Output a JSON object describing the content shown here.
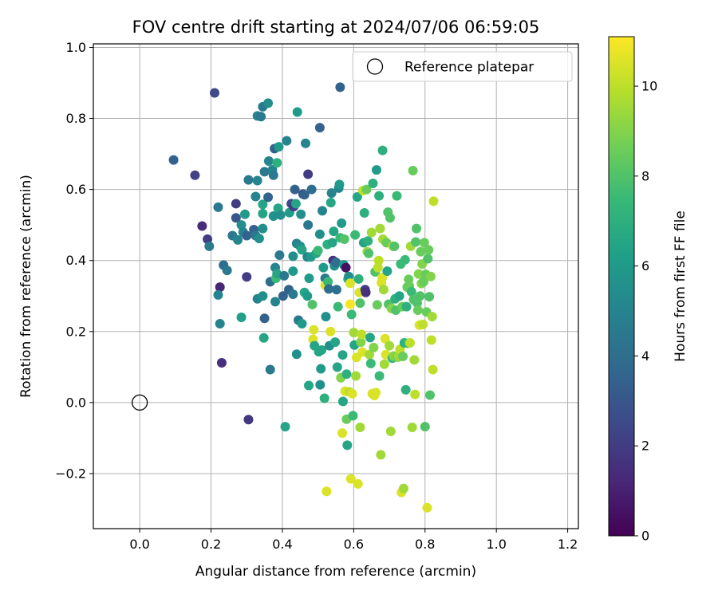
{
  "chart_data": {
    "type": "scatter",
    "title": "FOV centre drift starting at 2024/07/06 06:59:05",
    "xlabel": "Angular distance from reference (arcmin)",
    "ylabel": "Rotation from reference (arcmin)",
    "xlim": [
      -0.13,
      1.23
    ],
    "ylim": [
      -0.355,
      1.01
    ],
    "xticks": [
      0.0,
      0.2,
      0.4,
      0.6,
      0.8,
      1.0,
      1.2
    ],
    "xtick_labels": [
      "0.0",
      "0.2",
      "0.4",
      "0.6",
      "0.8",
      "1.0",
      "1.2"
    ],
    "yticks": [
      -0.2,
      0.0,
      0.2,
      0.4,
      0.6,
      0.8,
      1.0
    ],
    "ytick_labels": [
      "−0.2",
      "0.0",
      "0.2",
      "0.4",
      "0.6",
      "0.8",
      "1.0"
    ],
    "grid": true,
    "colormap": "viridis",
    "colorbar": {
      "label": "Hours from first FF file",
      "range": [
        0,
        11.1
      ],
      "ticks": [
        0,
        2,
        4,
        6,
        8,
        10
      ],
      "tick_labels": [
        "0",
        "2",
        "4",
        "6",
        "8",
        "10"
      ]
    },
    "reference": {
      "label": "Reference platepar",
      "x": 0.0,
      "y": 0.0
    },
    "legend": {
      "position": "top-right",
      "entries": [
        "Reference platepar"
      ]
    },
    "points": [
      [
        0.21,
        0.872,
        2.5
      ],
      [
        0.562,
        0.888,
        3.5
      ],
      [
        0.095,
        0.683,
        3.5
      ],
      [
        0.155,
        0.64,
        2.2
      ],
      [
        0.175,
        0.497,
        1.4
      ],
      [
        0.19,
        0.46,
        2.0
      ],
      [
        0.195,
        0.44,
        4.5
      ],
      [
        0.225,
        0.325,
        1.2
      ],
      [
        0.23,
        0.112,
        1.5
      ],
      [
        0.305,
        -0.048,
        1.8
      ],
      [
        0.22,
        0.303,
        5.0
      ],
      [
        0.225,
        0.222,
        5.0
      ],
      [
        0.235,
        0.387,
        4.0
      ],
      [
        0.245,
        0.372,
        4.5
      ],
      [
        0.22,
        0.55,
        4.5
      ],
      [
        0.26,
        0.47,
        4.5
      ],
      [
        0.27,
        0.52,
        3.0
      ],
      [
        0.27,
        0.56,
        2.0
      ],
      [
        0.275,
        0.458,
        5.0
      ],
      [
        0.285,
        0.24,
        6.2
      ],
      [
        0.285,
        0.5,
        5.5
      ],
      [
        0.29,
        0.48,
        5.0
      ],
      [
        0.295,
        0.53,
        6.0
      ],
      [
        0.3,
        0.47,
        3.5
      ],
      [
        0.3,
        0.354,
        2.0
      ],
      [
        0.305,
        0.627,
        4.5
      ],
      [
        0.32,
        0.487,
        3.5
      ],
      [
        0.325,
        0.47,
        4.5
      ],
      [
        0.325,
        0.58,
        5.0
      ],
      [
        0.33,
        0.625,
        5.0
      ],
      [
        0.33,
        0.807,
        5.0
      ],
      [
        0.335,
        0.462,
        5.5
      ],
      [
        0.33,
        0.292,
        5.0
      ],
      [
        0.34,
        0.805,
        4.5
      ],
      [
        0.345,
        0.833,
        4.5
      ],
      [
        0.345,
        0.3,
        5.5
      ],
      [
        0.345,
        0.558,
        6.5
      ],
      [
        0.345,
        0.532,
        6.5
      ],
      [
        0.345,
        0.49,
        5.5
      ],
      [
        0.348,
        0.182,
        6.5
      ],
      [
        0.35,
        0.237,
        3.5
      ],
      [
        0.35,
        0.65,
        4.5
      ],
      [
        0.36,
        0.843,
        5.5
      ],
      [
        0.36,
        0.578,
        3.5
      ],
      [
        0.362,
        0.68,
        5.0
      ],
      [
        0.366,
        0.093,
        4.5
      ],
      [
        0.366,
        0.34,
        4.0
      ],
      [
        0.372,
        0.655,
        5.0
      ],
      [
        0.375,
        0.64,
        4.5
      ],
      [
        0.375,
        0.525,
        5.5
      ],
      [
        0.378,
        0.715,
        3.5
      ],
      [
        0.38,
        0.284,
        5.0
      ],
      [
        0.38,
        0.38,
        5.0
      ],
      [
        0.382,
        0.35,
        7.5
      ],
      [
        0.385,
        0.363,
        6.5
      ],
      [
        0.385,
        0.675,
        7.0
      ],
      [
        0.388,
        0.547,
        6.5
      ],
      [
        0.39,
        0.72,
        6.0
      ],
      [
        0.392,
        0.415,
        4.5
      ],
      [
        0.395,
        0.528,
        5.5
      ],
      [
        0.402,
        0.3,
        3.5
      ],
      [
        0.405,
        0.357,
        4.5
      ],
      [
        0.408,
        -0.068,
        6.5
      ],
      [
        0.412,
        0.737,
        5.0
      ],
      [
        0.418,
        0.318,
        3.5
      ],
      [
        0.42,
        0.535,
        6.0
      ],
      [
        0.425,
        0.56,
        2.5
      ],
      [
        0.43,
        0.412,
        5.5
      ],
      [
        0.43,
        0.37,
        6.0
      ],
      [
        0.43,
        0.305,
        4.5
      ],
      [
        0.432,
        0.552,
        2.0
      ],
      [
        0.435,
        0.6,
        3.5
      ],
      [
        0.438,
        0.56,
        6.5
      ],
      [
        0.44,
        0.448,
        5.0
      ],
      [
        0.44,
        0.136,
        5.5
      ],
      [
        0.442,
        0.818,
        6.0
      ],
      [
        0.445,
        0.232,
        4.5
      ],
      [
        0.45,
        0.44,
        5.5
      ],
      [
        0.452,
        0.53,
        5.5
      ],
      [
        0.455,
        0.222,
        6.0
      ],
      [
        0.455,
        0.43,
        6.5
      ],
      [
        0.458,
        0.587,
        2.5
      ],
      [
        0.462,
        0.585,
        3.5
      ],
      [
        0.462,
        0.31,
        6.5
      ],
      [
        0.465,
        0.73,
        5.0
      ],
      [
        0.47,
        0.41,
        5.0
      ],
      [
        0.47,
        0.3,
        6.0
      ],
      [
        0.472,
        0.5,
        4.5
      ],
      [
        0.472,
        0.643,
        2.0
      ],
      [
        0.474,
        0.048,
        6.5
      ],
      [
        0.475,
        0.35,
        6.0
      ],
      [
        0.48,
        0.41,
        6.0
      ],
      [
        0.482,
        0.6,
        4.0
      ],
      [
        0.484,
        0.276,
        8.0
      ],
      [
        0.486,
        0.178,
        10.5
      ],
      [
        0.488,
        0.205,
        10.5
      ],
      [
        0.49,
        0.16,
        6.5
      ],
      [
        0.495,
        0.42,
        6.5
      ],
      [
        0.5,
        0.428,
        7.5
      ],
      [
        0.502,
        0.143,
        6.5
      ],
      [
        0.505,
        0.774,
        3.5
      ],
      [
        0.505,
        0.474,
        5.5
      ],
      [
        0.506,
        0.05,
        5.5
      ],
      [
        0.508,
        0.095,
        6.0
      ],
      [
        0.51,
        0.148,
        6.5
      ],
      [
        0.512,
        0.54,
        5.0
      ],
      [
        0.515,
        0.38,
        6.0
      ],
      [
        0.518,
        0.012,
        7.0
      ],
      [
        0.52,
        0.35,
        4.5
      ],
      [
        0.52,
        0.33,
        10.5
      ],
      [
        0.522,
        0.242,
        5.5
      ],
      [
        0.524,
        -0.25,
        10.5
      ],
      [
        0.526,
        0.445,
        7.0
      ],
      [
        0.528,
        0.34,
        7.5
      ],
      [
        0.53,
        0.32,
        4.0
      ],
      [
        0.532,
        0.16,
        5.5
      ],
      [
        0.535,
        0.2,
        10.5
      ],
      [
        0.536,
        0.563,
        6.5
      ],
      [
        0.538,
        0.59,
        5.0
      ],
      [
        0.54,
        0.45,
        6.5
      ],
      [
        0.542,
        0.4,
        1.5
      ],
      [
        0.544,
        0.482,
        6.5
      ],
      [
        0.546,
        0.385,
        5.5
      ],
      [
        0.548,
        0.17,
        6.5
      ],
      [
        0.55,
        0.395,
        4.0
      ],
      [
        0.552,
        0.318,
        4.0
      ],
      [
        0.554,
        0.1,
        6.5
      ],
      [
        0.556,
        0.27,
        7.5
      ],
      [
        0.558,
        0.604,
        5.0
      ],
      [
        0.56,
        0.614,
        6.0
      ],
      [
        0.562,
        0.464,
        7.5
      ],
      [
        0.564,
        0.07,
        9.0
      ],
      [
        0.566,
        0.505,
        6.0
      ],
      [
        0.568,
        -0.086,
        10.5
      ],
      [
        0.569,
        0.134,
        6.5
      ],
      [
        0.57,
        0.003,
        6.5
      ],
      [
        0.572,
        0.388,
        6.0
      ],
      [
        0.574,
        0.46,
        8.0
      ],
      [
        0.576,
        0.032,
        10.5
      ],
      [
        0.578,
        0.38,
        0.5
      ],
      [
        0.58,
        0.08,
        7.0
      ],
      [
        0.58,
        -0.047,
        8.5
      ],
      [
        0.582,
        -0.12,
        6.5
      ],
      [
        0.584,
        0.348,
        7.0
      ],
      [
        0.586,
        0.355,
        5.5
      ],
      [
        0.588,
        0.03,
        10.0
      ],
      [
        0.59,
        0.336,
        10.5
      ],
      [
        0.59,
        0.277,
        11.0
      ],
      [
        0.592,
        -0.215,
        10.5
      ],
      [
        0.594,
        0.248,
        7.5
      ],
      [
        0.596,
        0.025,
        10.5
      ],
      [
        0.598,
        -0.037,
        7.5
      ],
      [
        0.6,
        0.197,
        9.5
      ],
      [
        0.602,
        0.162,
        6.5
      ],
      [
        0.604,
        0.472,
        7.5
      ],
      [
        0.606,
        0.075,
        9.5
      ],
      [
        0.608,
        0.127,
        10.5
      ],
      [
        0.61,
        0.579,
        6.5
      ],
      [
        0.612,
        -0.229,
        10.5
      ],
      [
        0.614,
        0.348,
        7.0
      ],
      [
        0.616,
        0.31,
        10.5
      ],
      [
        0.618,
        0.28,
        8.0
      ],
      [
        0.618,
        -0.07,
        9.5
      ],
      [
        0.62,
        0.17,
        9.0
      ],
      [
        0.622,
        0.192,
        10.0
      ],
      [
        0.624,
        0.142,
        10.5
      ],
      [
        0.626,
        0.597,
        10.0
      ],
      [
        0.628,
        0.45,
        6.5
      ],
      [
        0.63,
        0.534,
        7.0
      ],
      [
        0.632,
        0.318,
        2.0
      ],
      [
        0.634,
        0.31,
        1.5
      ],
      [
        0.636,
        0.6,
        8.5
      ],
      [
        0.638,
        0.425,
        9.5
      ],
      [
        0.64,
        0.455,
        7.0
      ],
      [
        0.642,
        0.42,
        8.0
      ],
      [
        0.644,
        0.135,
        9.5
      ],
      [
        0.646,
        0.183,
        6.5
      ],
      [
        0.648,
        0.11,
        7.5
      ],
      [
        0.65,
        0.479,
        9.5
      ],
      [
        0.652,
        0.025,
        10.5
      ],
      [
        0.654,
        0.617,
        7.0
      ],
      [
        0.656,
        0.155,
        9.0
      ],
      [
        0.658,
        0.02,
        10.5
      ],
      [
        0.66,
        0.368,
        8.0
      ],
      [
        0.662,
        0.028,
        10.5
      ],
      [
        0.664,
        0.655,
        6.0
      ],
      [
        0.666,
        0.275,
        8.5
      ],
      [
        0.668,
        0.38,
        10.0
      ],
      [
        0.67,
        0.4,
        10.0
      ],
      [
        0.671,
        0.582,
        7.0
      ],
      [
        0.672,
        0.075,
        7.5
      ],
      [
        0.674,
        0.49,
        9.5
      ],
      [
        0.676,
        -0.147,
        9.5
      ],
      [
        0.678,
        0.337,
        10.5
      ],
      [
        0.68,
        0.352,
        10.5
      ],
      [
        0.681,
        0.71,
        7.0
      ],
      [
        0.682,
        0.46,
        9.5
      ],
      [
        0.684,
        0.318,
        9.5
      ],
      [
        0.686,
        0.108,
        9.5
      ],
      [
        0.688,
        0.18,
        10.5
      ],
      [
        0.69,
        0.135,
        10.5
      ],
      [
        0.692,
        0.45,
        8.5
      ],
      [
        0.694,
        0.37,
        6.5
      ],
      [
        0.696,
        0.536,
        8.0
      ],
      [
        0.698,
        0.277,
        8.0
      ],
      [
        0.7,
        0.16,
        9.5
      ],
      [
        0.702,
        0.52,
        8.0
      ],
      [
        0.704,
        -0.081,
        9.5
      ],
      [
        0.706,
        0.265,
        9.0
      ],
      [
        0.708,
        0.125,
        7.5
      ],
      [
        0.71,
        0.44,
        10.0
      ],
      [
        0.712,
        0.131,
        9.0
      ],
      [
        0.714,
        0.44,
        8.0
      ],
      [
        0.716,
        0.292,
        7.0
      ],
      [
        0.718,
        0.26,
        8.0
      ],
      [
        0.721,
        0.582,
        7.5
      ],
      [
        0.724,
        0.128,
        8.5
      ],
      [
        0.726,
        0.13,
        9.5
      ],
      [
        0.728,
        0.3,
        6.5
      ],
      [
        0.73,
        0.15,
        10.0
      ],
      [
        0.732,
        0.39,
        7.5
      ],
      [
        0.734,
        -0.253,
        10.5
      ],
      [
        0.736,
        0.27,
        8.5
      ],
      [
        0.738,
        0.13,
        8.5
      ],
      [
        0.74,
        -0.242,
        9.5
      ],
      [
        0.742,
        0.168,
        7.0
      ],
      [
        0.744,
        0.402,
        7.5
      ],
      [
        0.746,
        0.036,
        7.0
      ],
      [
        0.748,
        0.27,
        7.0
      ],
      [
        0.75,
        0.325,
        8.5
      ],
      [
        0.752,
        0.167,
        7.5
      ],
      [
        0.754,
        0.347,
        8.5
      ],
      [
        0.756,
        0.328,
        8.5
      ],
      [
        0.758,
        0.168,
        10.0
      ],
      [
        0.76,
        0.44,
        9.5
      ],
      [
        0.762,
        0.312,
        7.5
      ],
      [
        0.764,
        -0.07,
        9.5
      ],
      [
        0.766,
        0.653,
        8.5
      ],
      [
        0.768,
        0.29,
        8.0
      ],
      [
        0.77,
        0.12,
        9.5
      ],
      [
        0.772,
        0.023,
        10.0
      ],
      [
        0.774,
        0.452,
        8.0
      ],
      [
        0.776,
        0.49,
        8.0
      ],
      [
        0.778,
        0.28,
        8.0
      ],
      [
        0.78,
        0.26,
        8.5
      ],
      [
        0.782,
        0.362,
        9.0
      ],
      [
        0.784,
        0.218,
        10.5
      ],
      [
        0.786,
        0.3,
        8.0
      ],
      [
        0.788,
        0.425,
        8.5
      ],
      [
        0.79,
        0.335,
        9.0
      ],
      [
        0.792,
        0.39,
        9.0
      ],
      [
        0.794,
        0.22,
        10.0
      ],
      [
        0.796,
        0.34,
        8.5
      ],
      [
        0.798,
        0.45,
        8.5
      ],
      [
        0.8,
        -0.068,
        8.0
      ],
      [
        0.802,
        0.361,
        8.5
      ],
      [
        0.804,
        0.255,
        8.5
      ],
      [
        0.806,
        -0.296,
        10.5
      ],
      [
        0.808,
        0.405,
        8.0
      ],
      [
        0.81,
        0.43,
        8.5
      ],
      [
        0.812,
        0.298,
        8.0
      ],
      [
        0.814,
        0.021,
        8.0
      ],
      [
        0.816,
        0.355,
        9.0
      ],
      [
        0.818,
        0.176,
        10.0
      ],
      [
        0.82,
        0.242,
        9.5
      ],
      [
        0.822,
        0.093,
        10.0
      ],
      [
        0.824,
        0.567,
        10.0
      ]
    ]
  }
}
